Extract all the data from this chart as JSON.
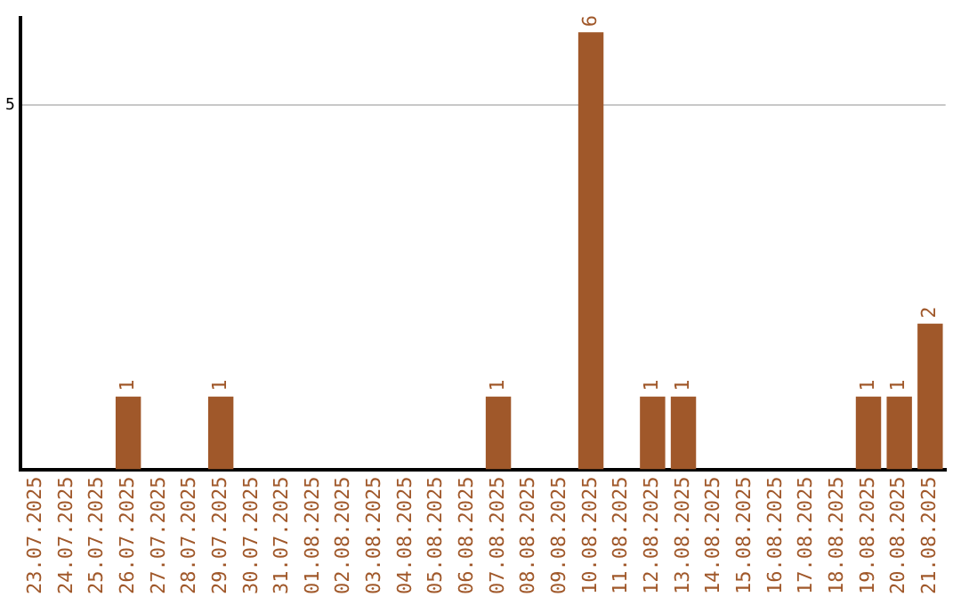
{
  "chart_data": {
    "type": "bar",
    "categories": [
      "23.07.2025",
      "24.07.2025",
      "25.07.2025",
      "26.07.2025",
      "27.07.2025",
      "28.07.2025",
      "29.07.2025",
      "30.07.2025",
      "31.07.2025",
      "01.08.2025",
      "02.08.2025",
      "03.08.2025",
      "04.08.2025",
      "05.08.2025",
      "06.08.2025",
      "07.08.2025",
      "08.08.2025",
      "09.08.2025",
      "10.08.2025",
      "11.08.2025",
      "12.08.2025",
      "13.08.2025",
      "14.08.2025",
      "15.08.2025",
      "16.08.2025",
      "17.08.2025",
      "18.08.2025",
      "19.08.2025",
      "20.08.2025",
      "21.08.2025"
    ],
    "values": [
      0,
      0,
      0,
      1,
      0,
      0,
      1,
      0,
      0,
      0,
      0,
      0,
      0,
      0,
      0,
      1,
      0,
      0,
      6,
      0,
      1,
      1,
      0,
      0,
      0,
      0,
      0,
      1,
      1,
      2
    ],
    "value_labels": [
      null,
      null,
      null,
      "1",
      null,
      null,
      "1",
      null,
      null,
      null,
      null,
      null,
      null,
      null,
      null,
      "1",
      null,
      null,
      "6",
      null,
      "1",
      "1",
      null,
      null,
      null,
      null,
      null,
      "1",
      "1",
      "2"
    ],
    "color": "#a0582a",
    "ylim": [
      0,
      6.2
    ],
    "yticks": [
      5
    ],
    "grid": "y",
    "legend": false
  }
}
